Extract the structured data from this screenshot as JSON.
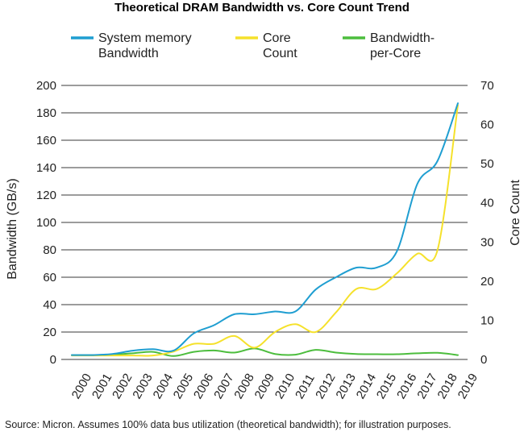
{
  "chart_data": {
    "type": "line",
    "title": "Theoretical DRAM Bandwidth vs. Core Count Trend",
    "source": "Source: Micron. Assumes 100% data bus utilization (theoretical bandwidth); for illustration purposes.",
    "x_ticks": [
      "2000",
      "2001",
      "2002",
      "2003",
      "2004",
      "2005",
      "2006",
      "2007",
      "2008",
      "2009",
      "2010",
      "2011",
      "2012",
      "2013",
      "2014",
      "2015",
      "2016",
      "2017",
      "2018",
      "2019"
    ],
    "y_left": {
      "label": "Bandwidth (GB/s)",
      "range": [
        0,
        200
      ],
      "ticks": [
        "0",
        "20",
        "40",
        "60",
        "80",
        "100",
        "120",
        "140",
        "160",
        "180",
        "200"
      ]
    },
    "y_right": {
      "label": "Core Count",
      "range": [
        0,
        70
      ],
      "ticks": [
        "0",
        "10",
        "20",
        "30",
        "40",
        "50",
        "60",
        "70"
      ]
    },
    "grid": "horizontal",
    "legend_position": "top",
    "legend": [
      {
        "name_lines": [
          "System memory",
          "Bandwidth"
        ],
        "color": "#1f9ed1"
      },
      {
        "name_lines": [
          "Core",
          "Count"
        ],
        "color": "#f5e12b"
      },
      {
        "name_lines": [
          "Bandwidth-",
          "per-Core"
        ],
        "color": "#4cbd3d"
      }
    ],
    "series": [
      {
        "name": "System memory Bandwidth",
        "axis": "left",
        "color": "#1f9ed1",
        "x": [
          2000,
          2001,
          2002,
          2003,
          2004,
          2005,
          2006,
          2007,
          2008,
          2009,
          2010,
          2011,
          2012,
          2013,
          2014,
          2015,
          2016,
          2017,
          2018,
          2019
        ],
        "values": [
          3.2,
          3.2,
          4,
          6.4,
          7.5,
          6.4,
          19,
          25,
          33,
          33,
          35,
          35,
          51,
          60,
          67,
          67,
          79,
          128,
          145,
          187
        ]
      },
      {
        "name": "Core Count",
        "axis": "right",
        "color": "#f5e12b",
        "x": [
          2000,
          2001,
          2002,
          2003,
          2004,
          2005,
          2006,
          2007,
          2008,
          2009,
          2010,
          2011,
          2012,
          2013,
          2014,
          2015,
          2016,
          2017,
          2018,
          2019
        ],
        "values": [
          1,
          1,
          1,
          1,
          1,
          2,
          4,
          4,
          6,
          3,
          7,
          9,
          7,
          12,
          18,
          18,
          22,
          27,
          28,
          65
        ]
      },
      {
        "name": "Bandwidth-per-Core",
        "axis": "left",
        "color": "#4cbd3d",
        "x": [
          2000,
          2001,
          2002,
          2003,
          2004,
          2005,
          2006,
          2007,
          2008,
          2009,
          2010,
          2011,
          2012,
          2013,
          2014,
          2015,
          2016,
          2017,
          2018,
          2019
        ],
        "values": [
          3.2,
          3.2,
          3.5,
          4.5,
          5.5,
          2.5,
          5.5,
          6.5,
          5,
          8,
          4,
          3.5,
          7,
          5,
          4,
          3.8,
          3.8,
          4.5,
          4.8,
          3.2
        ]
      }
    ]
  }
}
